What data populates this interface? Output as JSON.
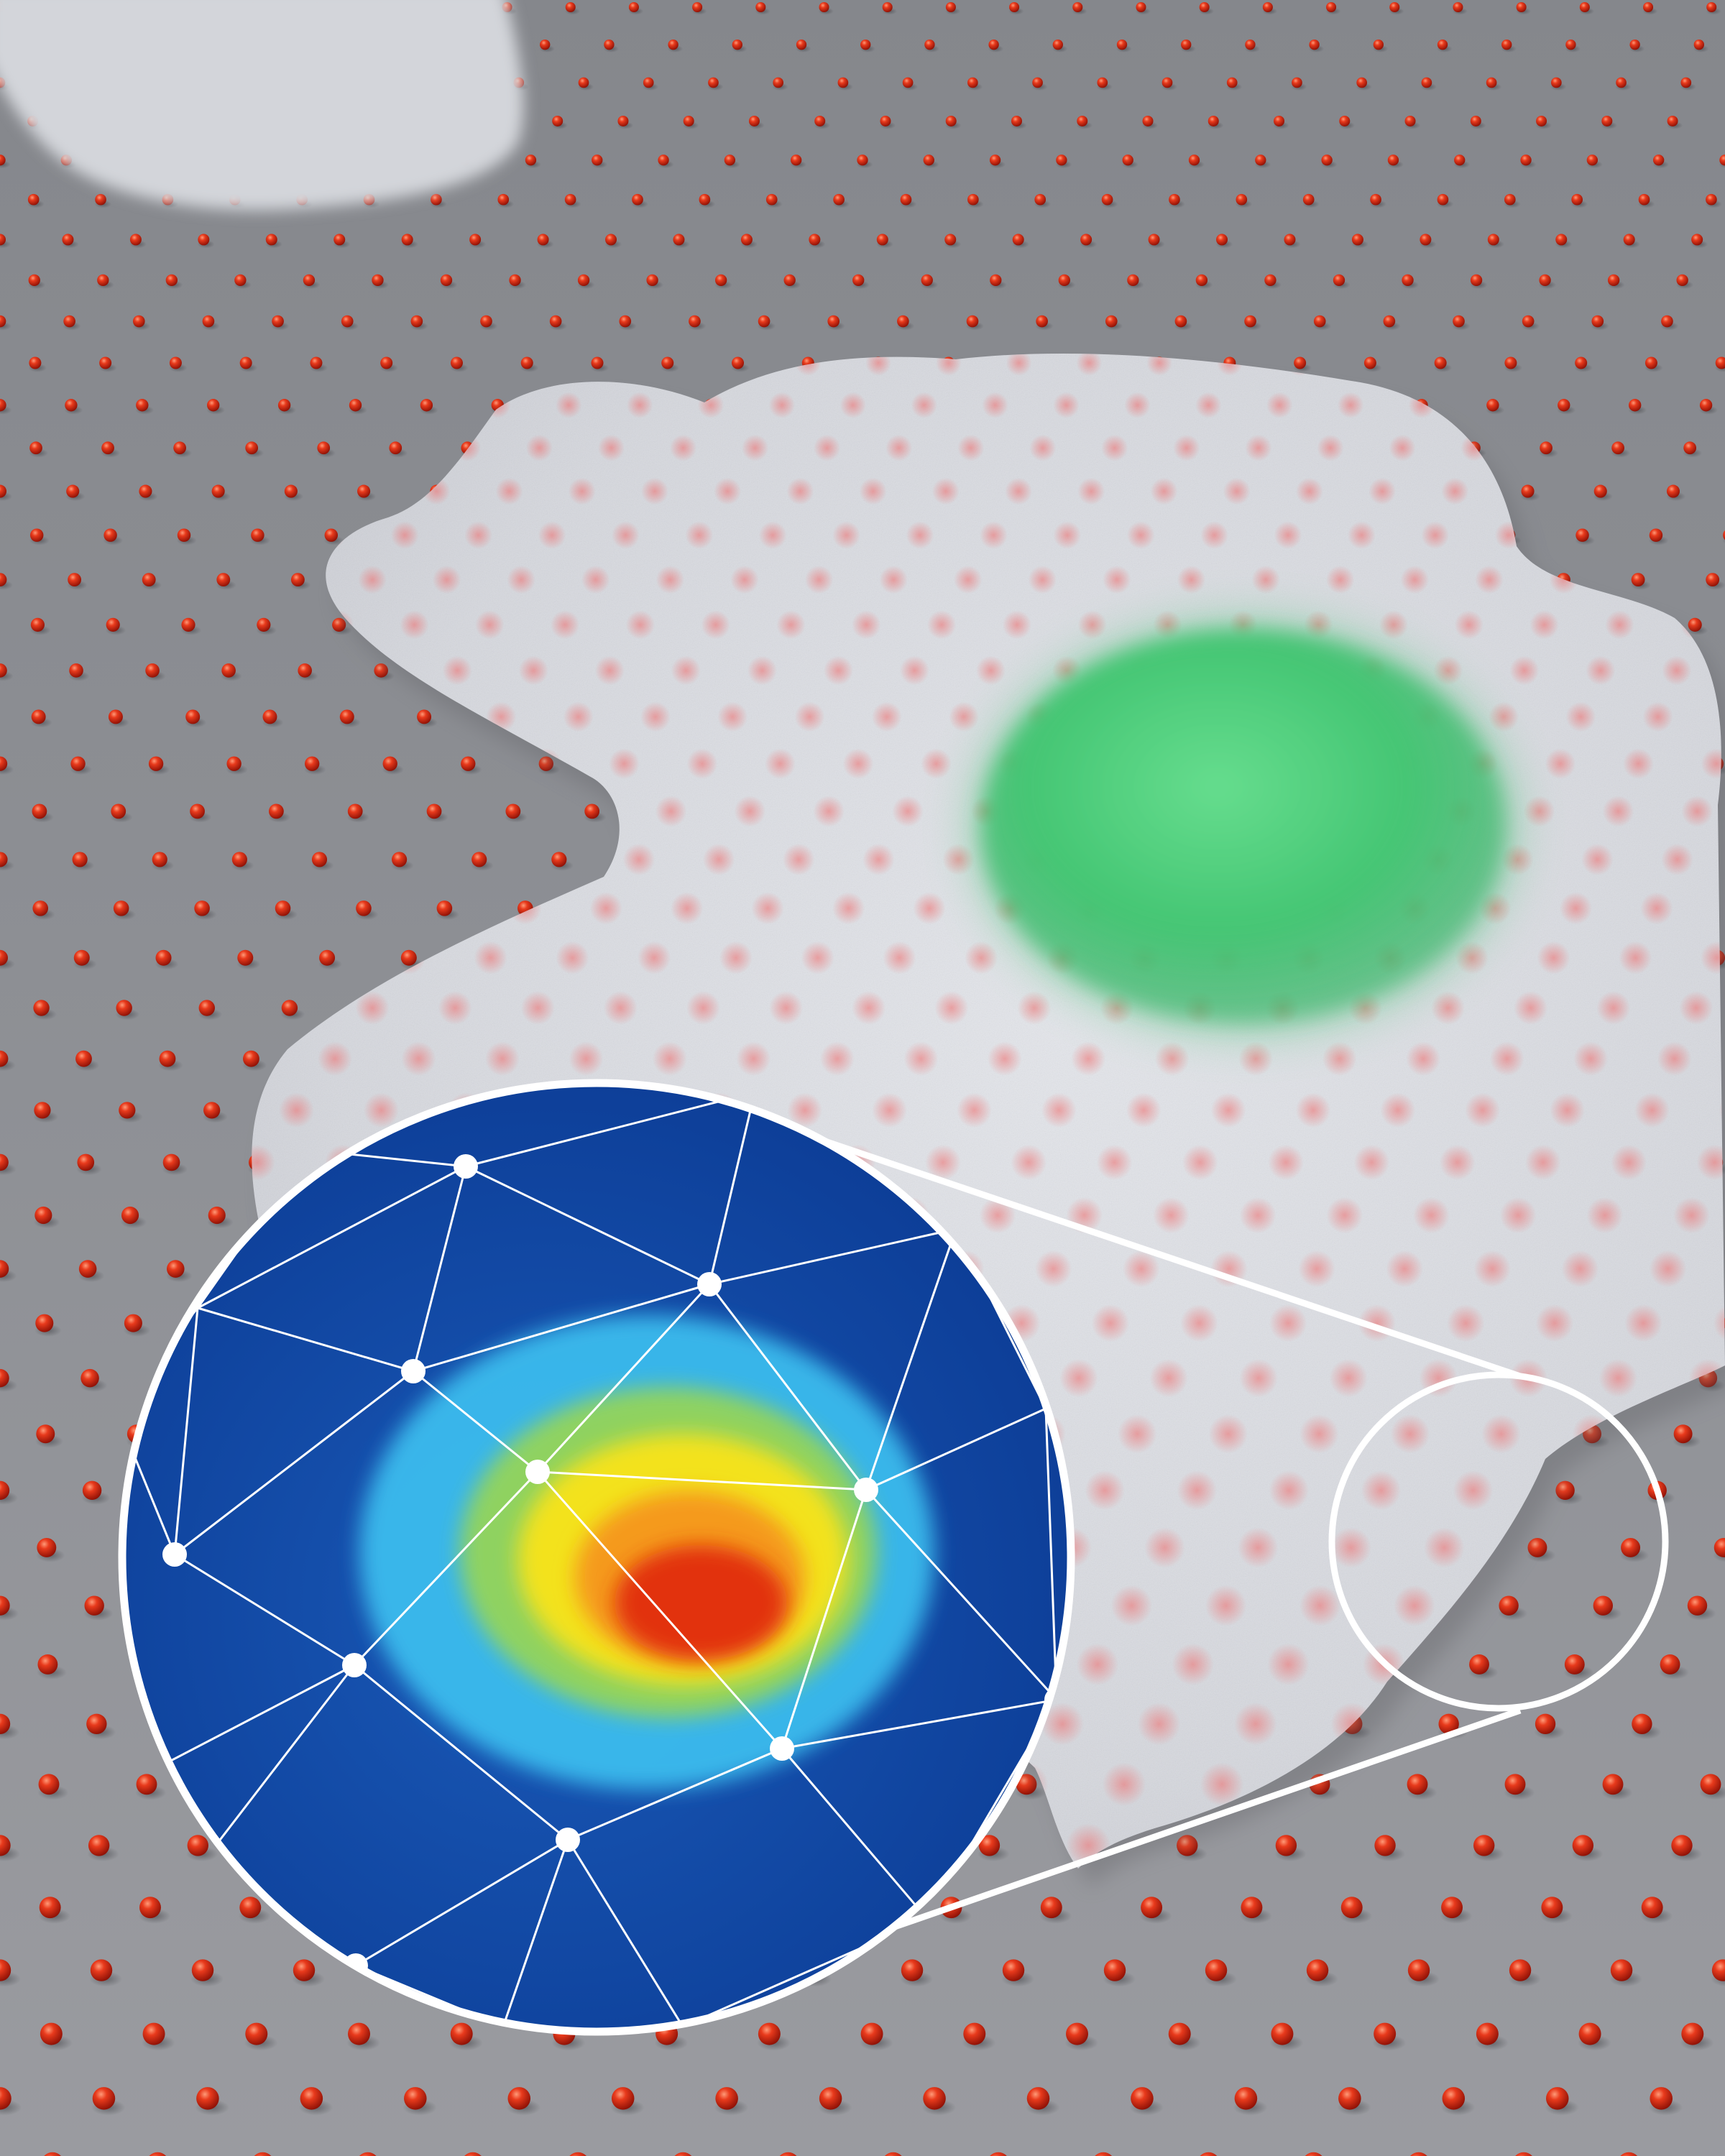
{
  "scene": {
    "description_free": true,
    "colors": {
      "substrate_light": "#9a9ba0",
      "substrate_dark": "#6f7075",
      "bead": "#d8230e",
      "bead_highlight": "#ff8a66",
      "cell_body": "#d9dbe0",
      "nucleus": "#49c978",
      "heatmap_background": "#0d3f9a",
      "heatmap_low": "#33b7ee",
      "heatmap_mid": "#f7e21a",
      "heatmap_high": "#d9140f",
      "mesh_line": "#ffffff",
      "callout_ring": "#ffffff"
    },
    "elements": [
      "substrate",
      "bead-array",
      "background-cell",
      "main-cell",
      "nucleus",
      "magnifier-inset",
      "traction-heatmap",
      "triangulation-mesh",
      "small-callout-circle",
      "callout-connector-lines"
    ]
  }
}
